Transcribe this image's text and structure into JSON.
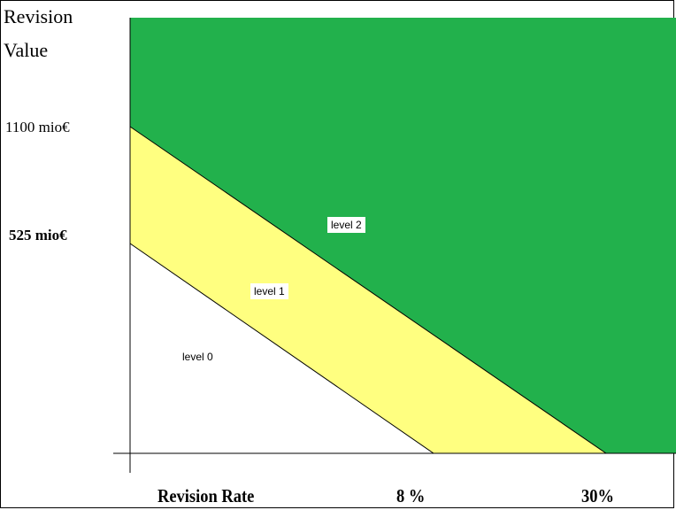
{
  "axes": {
    "y_title_line1": "Revision",
    "y_title_line2": "Value",
    "x_title": "Revision Rate"
  },
  "y_ticks": [
    {
      "label": "1100 mio€",
      "value_mio_eur": 1100
    },
    {
      "label": "525 mio€",
      "value_mio_eur": 525
    }
  ],
  "x_ticks": [
    {
      "label": "8 %",
      "value_percent": 8
    },
    {
      "label": "30%",
      "value_percent": 30
    }
  ],
  "regions": [
    {
      "name": "level 0",
      "color": "#ffffff"
    },
    {
      "name": "level 1",
      "color": "#ffff80"
    },
    {
      "name": "level 2",
      "color": "#22b14c"
    }
  ]
}
